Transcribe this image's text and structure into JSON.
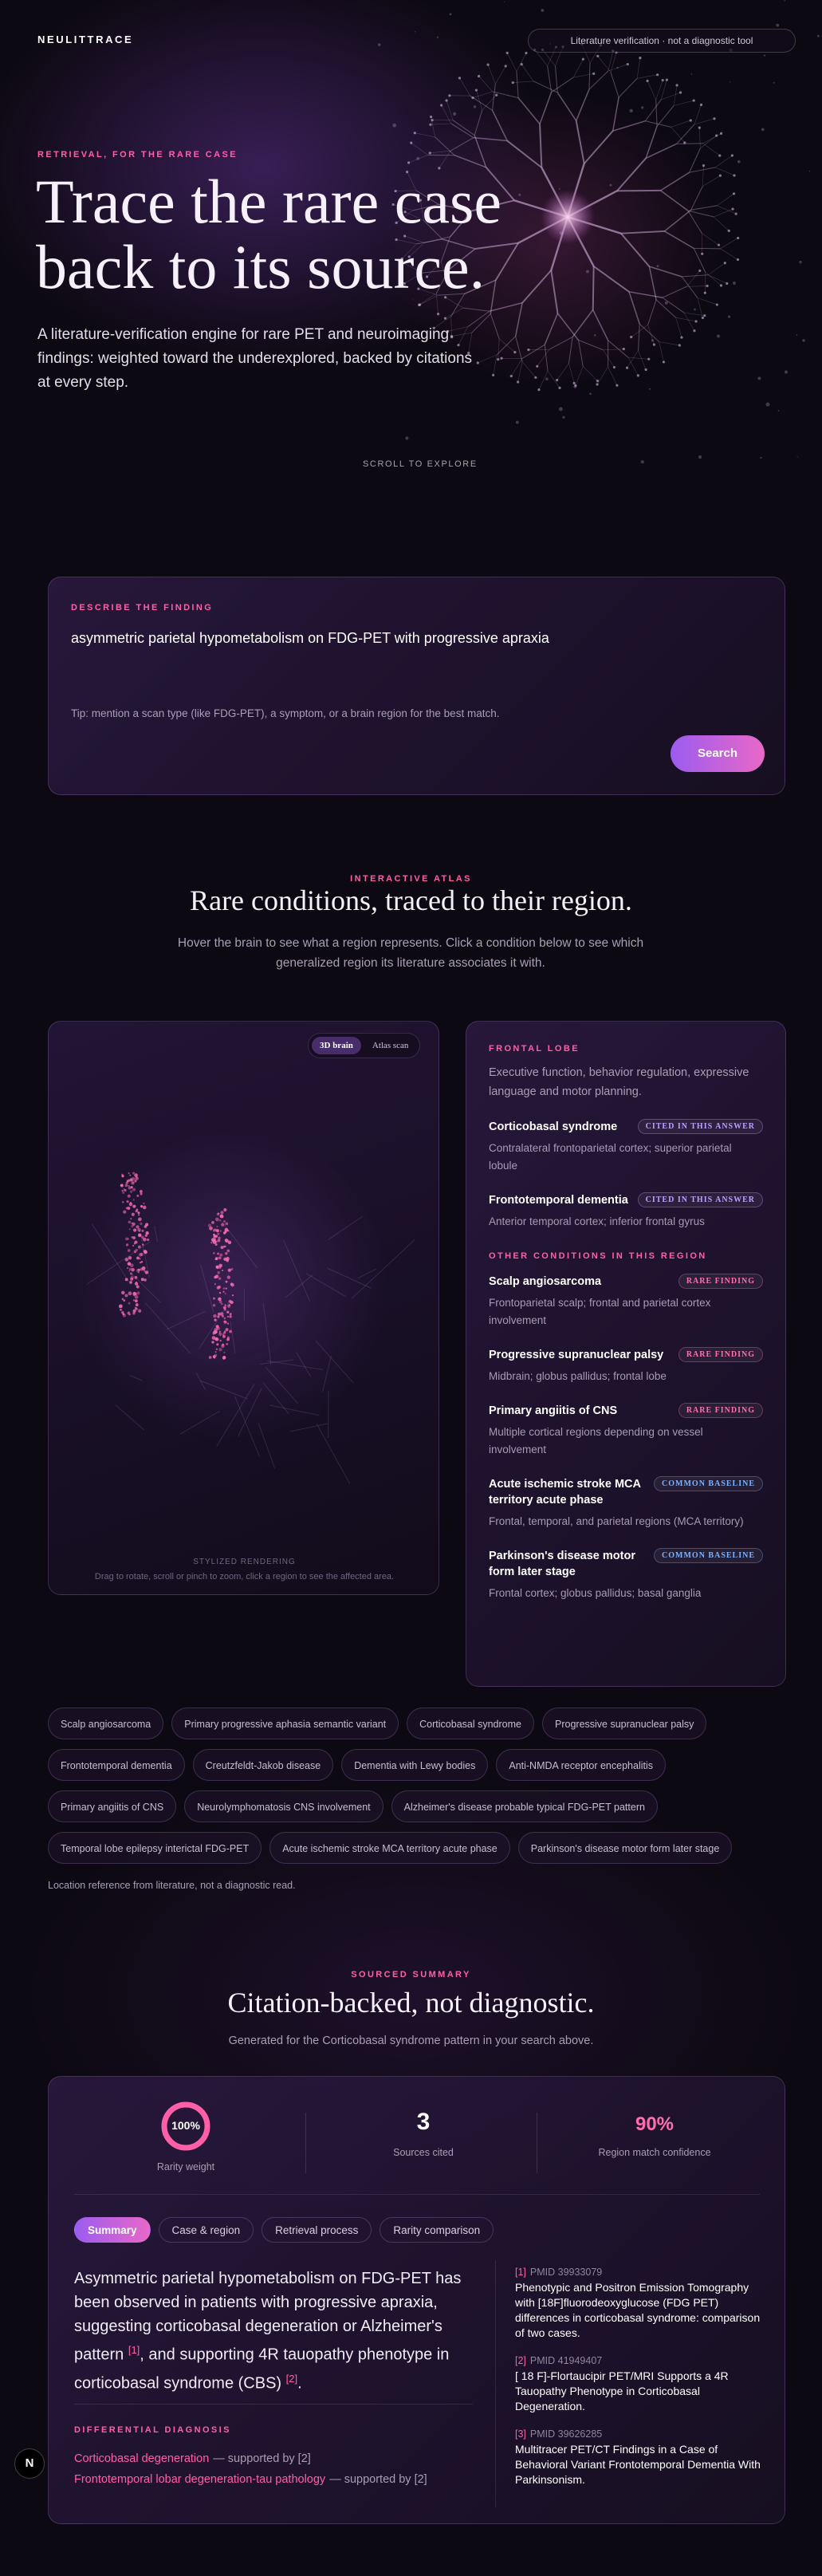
{
  "header": {
    "brand": "NEULITTRACE",
    "badge": "Literature verification · not a diagnostic tool"
  },
  "hero": {
    "eyebrow": "RETRIEVAL, FOR THE RARE CASE",
    "title_lines": [
      "Trace the rare case",
      "back to its source."
    ],
    "description": "A literature-verification engine for rare PET and neuroimaging findings: weighted toward the underexplored, backed by citations at every step.",
    "scroll_hint": "SCROLL TO EXPLORE"
  },
  "search": {
    "label": "DESCRIBE THE FINDING",
    "query": "asymmetric parietal hypometabolism on FDG-PET with progressive apraxia",
    "tip": "Tip: mention a scan type (like FDG-PET), a symptom, or a brain region for the best match.",
    "button": "Search"
  },
  "atlas": {
    "eyebrow": "INTERACTIVE ATLAS",
    "title": "Rare conditions, traced to their region.",
    "subtitle": "Hover the brain to see what a region represents. Click a condition below to see which generalized region its literature associates it with.",
    "view_toggle": [
      "3D brain",
      "Atlas scan"
    ],
    "rendering_label": "STYLIZED RENDERING",
    "rendering_hint": "Drag to rotate, scroll or pinch to zoom, click a region to see the affected area.",
    "region": {
      "name": "FRONTAL LOBE",
      "description": "Executive function, behavior regulation, expressive language and motor planning.",
      "cited": [
        {
          "name": "Corticobasal syndrome",
          "badge": "CITED IN THIS ANSWER",
          "badge_color": "#b9a3ff",
          "description": "Contralateral frontoparietal cortex; superior parietal lobule"
        },
        {
          "name": "Frontotemporal dementia",
          "badge": "CITED IN THIS ANSWER",
          "badge_color": "#b9a3ff",
          "description": "Anterior temporal cortex; inferior frontal gyrus"
        }
      ],
      "others_heading": "OTHER CONDITIONS IN THIS REGION",
      "others": [
        {
          "name": "Scalp angiosarcoma",
          "badge": "RARE FINDING",
          "badge_color": "#ff6fae",
          "description": "Frontoparietal scalp; frontal and parietal cortex involvement"
        },
        {
          "name": "Progressive supranuclear palsy",
          "badge": "RARE FINDING",
          "badge_color": "#ff6fae",
          "description": "Midbrain; globus pallidus; frontal lobe"
        },
        {
          "name": "Primary angiitis of CNS",
          "badge": "RARE FINDING",
          "badge_color": "#ff6fae",
          "description": "Multiple cortical regions depending on vessel involvement"
        },
        {
          "name": "Acute ischemic stroke MCA territory acute phase",
          "badge": "COMMON BASELINE",
          "badge_color": "#7fb2ff",
          "description": "Frontal, temporal, and parietal regions (MCA territory)"
        },
        {
          "name": "Parkinson's disease motor form later stage",
          "badge": "COMMON BASELINE",
          "badge_color": "#7fb2ff",
          "description": "Frontal cortex; globus pallidus; basal ganglia"
        }
      ]
    },
    "chips": [
      "Scalp angiosarcoma",
      "Primary progressive aphasia semantic variant",
      "Corticobasal syndrome",
      "Progressive supranuclear palsy",
      "Frontotemporal dementia",
      "Creutzfeldt-Jakob disease",
      "Dementia with Lewy bodies",
      "Anti-NMDA receptor encephalitis",
      "Primary angiitis of CNS",
      "Neurolymphomatosis CNS involvement",
      "Alzheimer's disease probable typical FDG-PET pattern",
      "Temporal lobe epilepsy interictal FDG-PET",
      "Acute ischemic stroke MCA territory acute phase",
      "Parkinson's disease motor form later stage"
    ],
    "footnote": "Location reference from literature, not a diagnostic read."
  },
  "summary": {
    "eyebrow": "SOURCED SUMMARY",
    "title": "Citation-backed, not diagnostic.",
    "subtitle": "Generated for the Corticobasal syndrome pattern in your search above.",
    "stats": [
      {
        "value": "100%",
        "label": "Rarity weight"
      },
      {
        "value": "3",
        "label": "Sources cited"
      },
      {
        "value": "90%",
        "label": "Region match confidence"
      }
    ],
    "tabs": [
      "Summary",
      "Case & region",
      "Retrieval process",
      "Rarity comparison"
    ],
    "paragraph": [
      {
        "text": "Asymmetric parietal hypometabolism on FDG-PET has been observed in patients with progressive apraxia, suggesting corticobasal degeneration or Alzheimer's pattern "
      },
      {
        "cite": "[1]"
      },
      {
        "text": ", and supporting 4R tauopathy phenotype in corticobasal syndrome (CBS) "
      },
      {
        "cite": "[2]"
      },
      {
        "text": "."
      }
    ],
    "differential_heading": "DIFFERENTIAL DIAGNOSIS",
    "differential": [
      {
        "name": "Corticobasal degeneration",
        "support": "— supported by [2]"
      },
      {
        "name": "Frontotemporal lobar degeneration-tau pathology",
        "support": "— supported by [2]"
      }
    ],
    "citations": [
      {
        "ref": "[1]",
        "pmid": "PMID 39933079",
        "title": "Phenotypic and Positron Emission Tomography with [18F]fluorodeoxyglucose (FDG PET) differences in corticobasal syndrome: comparison of two cases."
      },
      {
        "ref": "[2]",
        "pmid": "PMID 41949407",
        "title": "[ 18 F]-Flortaucipir PET/MRI Supports a 4R Tauopathy Phenotype in Corticobasal Degeneration."
      },
      {
        "ref": "[3]",
        "pmid": "PMID 39626285",
        "title": "Multitracer PET/CT Findings in a Case of Behavioral Variant Frontotemporal Dementia With Parkinsonism."
      }
    ]
  },
  "logo": "N"
}
